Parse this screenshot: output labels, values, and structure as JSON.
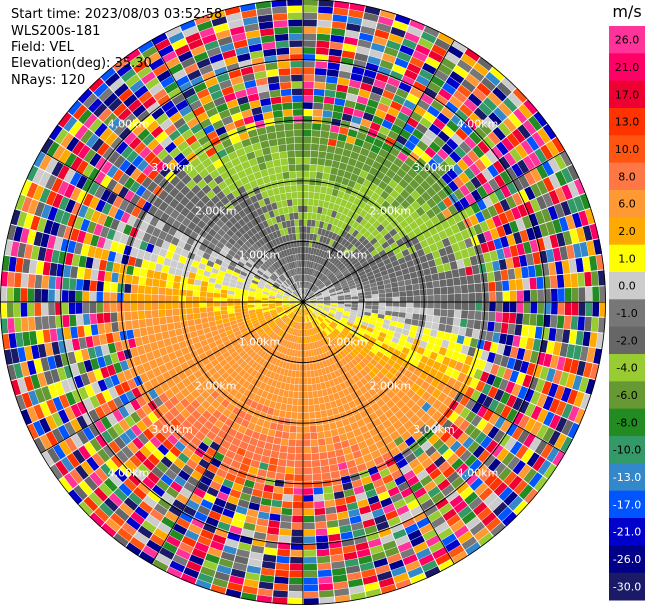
{
  "header": {
    "start_time": "Start time: 2023/08/03 03:52:58",
    "instrument": "WLS200s-181",
    "field": "Field: VEL",
    "elevation": "Elevation(deg): 35.30",
    "nrays": "NRays: 120"
  },
  "colorbar": {
    "unit": "m/s",
    "ticks": [
      "26.0",
      "21.0",
      "17.0",
      "13.0",
      "10.0",
      "8.0",
      "6.0",
      "2.0",
      "1.0",
      "0.0",
      "-1.0",
      "-2.0",
      "-4.0",
      "-6.0",
      "-8.0",
      "-10.0",
      "-13.0",
      "-17.0",
      "-21.0",
      "-26.0",
      "-30.0"
    ],
    "colors": [
      "#ff3399",
      "#ff0066",
      "#ee0033",
      "#ff3300",
      "#ff5511",
      "#ff7744",
      "#ff9933",
      "#ffaa00",
      "#ffff00",
      "#cccccc",
      "#777777",
      "#666666",
      "#99cc33",
      "#669933",
      "#228b22",
      "#339966",
      "#3388cc",
      "#0055ff",
      "#0000cc",
      "#000088",
      "#1a1a66"
    ]
  },
  "chart_data": {
    "type": "ppi",
    "title": "",
    "range_rings_km": [
      1.0,
      2.0,
      3.0,
      4.0
    ],
    "ring_labels": [
      "1.00km",
      "2.00km",
      "3.00km",
      "4.00km"
    ],
    "max_range_km": 5.0,
    "nrays": 120,
    "field": "VEL",
    "elevation_deg": 35.3,
    "wind_pattern": {
      "description_sectors": [
        {
          "azimuth_from": 60,
          "azimuth_to": 150,
          "velocity": -6.0
        },
        {
          "azimuth_from": 150,
          "azimuth_to": 240,
          "velocity": -4.0
        },
        {
          "azimuth_from": 240,
          "azimuth_to": 330,
          "velocity": 6.0
        },
        {
          "azimuth_from": 330,
          "azimuth_to": 60,
          "velocity": 4.0
        }
      ],
      "clean_range_km": 2.6
    }
  }
}
